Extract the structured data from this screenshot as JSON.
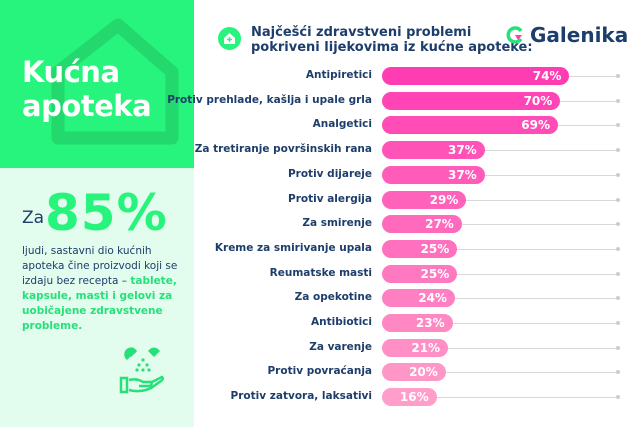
{
  "left_panel": {
    "title_line1": "Kućna",
    "title_line2": "apoteka",
    "prefix": "Za",
    "big_value": "85%",
    "desc_plain": "ljudi, sastavni dio kućnih apoteka čine proizvodi koji se izdaju bez recepta – ",
    "desc_highlight": "tablete, kapsule, masti i gelovi za uobičajene zdravstvene probleme."
  },
  "header": {
    "title_line1": "Najčešći zdravstveni problemi",
    "title_line2": "pokriveni lijekovima iz kućne apoteke:",
    "brand": "Galenika"
  },
  "colors": {
    "green": "#27f47c",
    "navy": "#1d3d6b",
    "pink_start": "#ff3db3",
    "pink_end": "#ff9ec8"
  },
  "chart_data": {
    "type": "bar",
    "orientation": "horizontal",
    "title": "Najčešći zdravstveni problemi pokriveni lijekovima iz kućne apoteke:",
    "categories": [
      "Antipiretici",
      "Protiv prehlade, kašlja i upale grla",
      "Analgetici",
      "Za tretiranje površinskih rana",
      "Protiv dijareje",
      "Protiv alergija",
      "Za smirenje",
      "Kreme za smirivanje upala",
      "Reumatske masti",
      "Za opekotine",
      "Antibiotici",
      "Za varenje",
      "Protiv povraćanja",
      "Protiv zatvora, laksativi"
    ],
    "values": [
      74,
      70,
      69,
      37,
      37,
      29,
      27,
      25,
      25,
      24,
      23,
      21,
      20,
      16
    ],
    "labels": [
      "74%",
      "70%",
      "69%",
      "37%",
      "37%",
      "29%",
      "27%",
      "25%",
      "25%",
      "24%",
      "23%",
      "21%",
      "20%",
      "16%"
    ],
    "unit": "%"
  }
}
